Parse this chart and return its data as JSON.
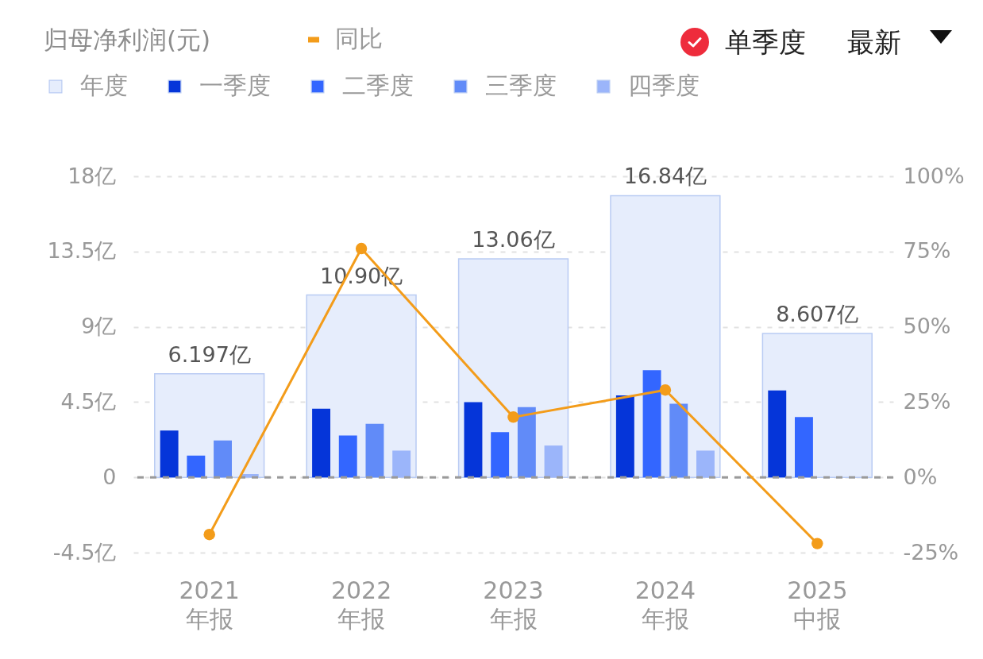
{
  "chart_data": {
    "type": "bar",
    "title": "归母净利润(元)",
    "categories": [
      "2021\n年报",
      "2022\n年报",
      "2023\n年报",
      "2024\n年报",
      "2025\n中报"
    ],
    "series": [
      {
        "name": "年度",
        "color": "#e6edfc",
        "values": [
          6.197,
          10.9,
          13.06,
          16.84,
          8.607
        ],
        "value_labels": [
          "6.197亿",
          "10.90亿",
          "13.06亿",
          "16.84亿",
          "8.607亿"
        ]
      },
      {
        "name": "一季度",
        "color": "#0535d9",
        "values": [
          2.8,
          4.1,
          4.5,
          4.9,
          5.2
        ]
      },
      {
        "name": "二季度",
        "color": "#3366ff",
        "values": [
          1.3,
          2.5,
          2.7,
          6.4,
          3.6
        ]
      },
      {
        "name": "三季度",
        "color": "#618bf8",
        "values": [
          2.2,
          3.2,
          4.2,
          4.4,
          null
        ]
      },
      {
        "name": "四季度",
        "color": "#9bb5fa",
        "values": [
          0.2,
          1.6,
          1.9,
          1.6,
          null
        ]
      },
      {
        "name": "同比",
        "type": "line",
        "axis": "y2",
        "color": "#f39c1a",
        "marker": "circle",
        "values": [
          -19,
          76,
          20,
          29,
          -22
        ]
      }
    ],
    "ylim": [
      -4.5,
      18
    ],
    "yticks": [
      {
        "value": -4.5,
        "label": "-4.5亿"
      },
      0,
      {
        "value": 4.5,
        "label": "4.5亿"
      },
      {
        "value": 9,
        "label": "9亿"
      },
      {
        "value": 13.5,
        "label": "13.5亿"
      },
      {
        "value": 18,
        "label": "18亿"
      }
    ],
    "y2lim": [
      -25,
      100
    ],
    "y2ticks": [
      {
        "value": -25,
        "label": "-25%"
      },
      {
        "value": 0,
        "label": "0%"
      },
      {
        "value": 25,
        "label": "25%"
      },
      {
        "value": 50,
        "label": "50%"
      },
      {
        "value": 75,
        "label": "75%"
      },
      {
        "value": 100,
        "label": "100%"
      }
    ],
    "grid": "y",
    "legend": "top left",
    "ref_lines": [
      {
        "axis": "y",
        "value": 0,
        "color": "#9a9a9a",
        "line_style": "dashed"
      }
    ],
    "annotations": [
      "单季度",
      "最新"
    ]
  }
}
